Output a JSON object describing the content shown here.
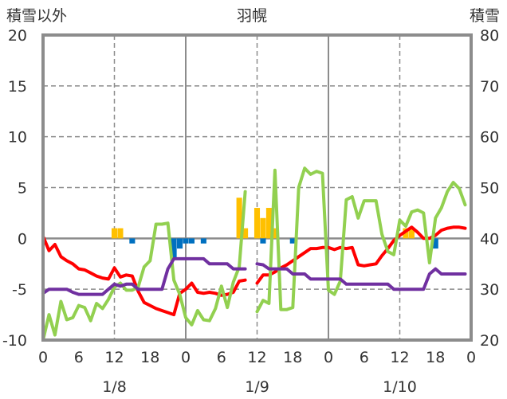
{
  "chart_data": {
    "type": "line",
    "title": "羽幌",
    "left_axis_label": "積雪以外",
    "right_axis_label": "積雪",
    "left_ylim": [
      -10,
      20
    ],
    "left_ticks": [
      20,
      15,
      10,
      5,
      0,
      -5,
      -10
    ],
    "right_ylim": [
      20,
      80
    ],
    "right_ticks": [
      80,
      70,
      60,
      50,
      40,
      30,
      20
    ],
    "xlim": [
      0,
      72
    ],
    "x_tick_values": [
      0,
      6,
      12,
      18,
      24,
      30,
      36,
      42,
      48,
      54,
      60,
      66,
      72
    ],
    "x_tick_labels": [
      "0",
      "6",
      "12",
      "18",
      "0",
      "6",
      "12",
      "18",
      "0",
      "6",
      "12",
      "18",
      "0"
    ],
    "date_labels": [
      {
        "x": 12,
        "label": "1/8"
      },
      {
        "x": 36,
        "label": "1/9"
      },
      {
        "x": 60,
        "label": "1/10"
      }
    ],
    "day_lines": [
      24,
      48
    ],
    "dashed_lines": [
      12,
      36,
      60
    ],
    "grid": true,
    "series": [
      {
        "color": "#ff0000",
        "axis": "left",
        "values": [
          [
            0,
            0.2
          ],
          [
            1,
            -1.2
          ],
          [
            2,
            -0.6
          ],
          [
            3,
            -1.8
          ],
          [
            4,
            -2.2
          ],
          [
            5,
            -2.5
          ],
          [
            6,
            -3
          ],
          [
            7,
            -3.1
          ],
          [
            8,
            -3.4
          ],
          [
            9,
            -3.7
          ],
          [
            10,
            -3.9
          ],
          [
            11,
            -4
          ],
          [
            12,
            -2.9
          ],
          [
            13,
            -3.8
          ],
          [
            14,
            -3.6
          ],
          [
            15,
            -3.7
          ],
          [
            16,
            -5.2
          ],
          [
            17,
            -6.3
          ],
          [
            18,
            -6.6
          ],
          [
            19,
            -6.9
          ],
          [
            20,
            -7.1
          ],
          [
            21,
            -7.3
          ],
          [
            22,
            -7.5
          ],
          [
            23,
            -5.4
          ],
          [
            24,
            -5
          ],
          [
            25,
            -4.4
          ],
          [
            26,
            -5.3
          ],
          [
            27,
            -5.4
          ],
          [
            28,
            -5.3
          ],
          [
            29,
            -5.4
          ],
          [
            30,
            -5.6
          ],
          [
            31,
            -5.5
          ],
          [
            32,
            -5.3
          ],
          [
            33,
            -4.2
          ],
          [
            34,
            -4.1
          ],
          null,
          [
            36,
            -4.4
          ],
          [
            37,
            -3.6
          ],
          [
            38,
            -3.6
          ],
          [
            39,
            -3.3
          ],
          [
            40,
            -2.9
          ],
          [
            41,
            -2.6
          ],
          [
            42,
            -2.2
          ],
          [
            43,
            -1.8
          ],
          [
            44,
            -1.4
          ],
          [
            45,
            -1
          ],
          [
            46,
            -1
          ],
          [
            47,
            -0.9
          ],
          [
            48,
            -0.9
          ],
          [
            49,
            -1.1
          ],
          [
            50,
            -0.9
          ],
          [
            51,
            -1
          ],
          [
            52,
            -0.9
          ],
          [
            53,
            -2.6
          ],
          [
            54,
            -2.7
          ],
          [
            55,
            -2.6
          ],
          [
            56,
            -2.5
          ],
          [
            57,
            -1.7
          ],
          [
            58,
            -1
          ],
          [
            59,
            -0.2
          ],
          [
            60,
            0.3
          ],
          [
            61,
            0.7
          ],
          [
            62,
            1.1
          ],
          [
            63,
            0.6
          ],
          [
            64,
            0
          ],
          [
            65,
            0
          ],
          [
            66,
            0.3
          ],
          [
            67,
            0.8
          ],
          [
            68,
            1
          ],
          [
            69,
            1.1
          ],
          [
            70,
            1.1
          ],
          [
            71,
            1
          ]
        ]
      },
      {
        "color": "#92d050",
        "axis": "left",
        "values": [
          [
            0,
            -10
          ],
          [
            1,
            -7.5
          ],
          [
            2,
            -9.5
          ],
          [
            3,
            -6.2
          ],
          [
            4,
            -8
          ],
          [
            5,
            -7.8
          ],
          [
            6,
            -6.6
          ],
          [
            7,
            -6.8
          ],
          [
            8,
            -8.1
          ],
          [
            9,
            -6.4
          ],
          [
            10,
            -6.9
          ],
          [
            11,
            -6
          ],
          [
            12,
            -4.8
          ],
          [
            13,
            -4.4
          ],
          [
            14,
            -5.1
          ],
          [
            15,
            -5.1
          ],
          [
            16,
            -4.8
          ],
          [
            17,
            -2.8
          ],
          [
            18,
            -2.2
          ],
          [
            19,
            1.4
          ],
          [
            20,
            1.4
          ],
          [
            21,
            1.5
          ],
          [
            22,
            -4.1
          ],
          [
            23,
            -5.5
          ],
          [
            24,
            -7.8
          ],
          [
            25,
            -8.5
          ],
          [
            26,
            -7.1
          ],
          [
            27,
            -8
          ],
          [
            28,
            -8.1
          ],
          [
            29,
            -6.9
          ],
          [
            30,
            -4.7
          ],
          [
            31,
            -6.8
          ],
          [
            32,
            -4.3
          ],
          [
            33,
            -2.8
          ],
          [
            34,
            4.6
          ],
          null,
          [
            36,
            -7.2
          ],
          [
            37,
            -6.1
          ],
          [
            38,
            -6.4
          ],
          [
            39,
            6.7
          ],
          [
            40,
            -7
          ],
          [
            41,
            -7
          ],
          [
            42,
            -6.8
          ],
          [
            43,
            5
          ],
          [
            44,
            6.9
          ],
          [
            45,
            6.3
          ],
          [
            46,
            6.6
          ],
          [
            47,
            6.4
          ],
          [
            48,
            -5.1
          ],
          [
            49,
            -5.5
          ],
          [
            50,
            -4.2
          ],
          [
            51,
            3.8
          ],
          [
            52,
            4.1
          ],
          [
            53,
            2
          ],
          [
            54,
            3.7
          ],
          [
            55,
            3.7
          ],
          [
            56,
            3.7
          ],
          [
            57,
            0.4
          ],
          [
            58,
            -1.3
          ],
          [
            59,
            -1.6
          ],
          [
            60,
            1.8
          ],
          [
            61,
            1.2
          ],
          [
            62,
            2.6
          ],
          [
            63,
            2.8
          ],
          [
            64,
            2.5
          ],
          [
            65,
            -2.4
          ],
          [
            66,
            2
          ],
          [
            67,
            3
          ],
          [
            68,
            4.6
          ],
          [
            69,
            5.5
          ],
          [
            70,
            4.9
          ],
          [
            71,
            3.3
          ]
        ]
      },
      {
        "color": "#7030a0",
        "axis": "left",
        "values": [
          [
            0,
            -5.4
          ],
          [
            1,
            -5
          ],
          [
            2,
            -5
          ],
          [
            3,
            -5
          ],
          [
            4,
            -5
          ],
          [
            5,
            -5.3
          ],
          [
            6,
            -5.5
          ],
          [
            7,
            -5.5
          ],
          [
            8,
            -5.5
          ],
          [
            9,
            -5.5
          ],
          [
            10,
            -5.5
          ],
          [
            11,
            -5
          ],
          [
            12,
            -4.5
          ],
          [
            13,
            -4.7
          ],
          [
            14,
            -4.5
          ],
          [
            15,
            -4.5
          ],
          [
            16,
            -5
          ],
          [
            17,
            -5
          ],
          [
            18,
            -5
          ],
          [
            19,
            -5
          ],
          [
            20,
            -5
          ],
          [
            21,
            -3
          ],
          [
            22,
            -2
          ],
          [
            23,
            -2
          ],
          [
            24,
            -2
          ],
          [
            25,
            -2
          ],
          [
            26,
            -2
          ],
          [
            27,
            -2
          ],
          [
            28,
            -2.5
          ],
          [
            29,
            -2.5
          ],
          [
            30,
            -2.5
          ],
          [
            31,
            -2.5
          ],
          [
            32,
            -3
          ],
          [
            33,
            -3
          ],
          [
            34,
            -3
          ],
          null,
          [
            36,
            -2.5
          ],
          [
            37,
            -2.6
          ],
          [
            38,
            -3
          ],
          [
            39,
            -3
          ],
          [
            40,
            -3
          ],
          [
            41,
            -3
          ],
          [
            42,
            -3.5
          ],
          [
            43,
            -3.5
          ],
          [
            44,
            -3.5
          ],
          [
            45,
            -4
          ],
          [
            46,
            -4
          ],
          [
            47,
            -4
          ],
          [
            48,
            -4
          ],
          [
            49,
            -4
          ],
          [
            50,
            -4
          ],
          [
            51,
            -4.5
          ],
          [
            52,
            -4.5
          ],
          [
            53,
            -4.5
          ],
          [
            54,
            -4.5
          ],
          [
            55,
            -4.5
          ],
          [
            56,
            -4.5
          ],
          [
            57,
            -4.5
          ],
          [
            58,
            -4.5
          ],
          [
            59,
            -5
          ],
          [
            60,
            -5
          ],
          [
            61,
            -5
          ],
          [
            62,
            -5
          ],
          [
            63,
            -5
          ],
          [
            64,
            -5
          ],
          [
            65,
            -3.5
          ],
          [
            66,
            -3
          ],
          [
            67,
            -3.5
          ],
          [
            68,
            -3.5
          ],
          [
            69,
            -3.5
          ],
          [
            70,
            -3.5
          ],
          [
            71,
            -3.5
          ]
        ]
      }
    ],
    "bars": [
      {
        "color": "#ffc000",
        "axis": "left",
        "values": [
          [
            12,
            1
          ],
          [
            13,
            1
          ],
          [
            33,
            4
          ],
          [
            34,
            1
          ],
          [
            36,
            3
          ],
          [
            37,
            2
          ],
          [
            38,
            3
          ],
          [
            39,
            1
          ],
          [
            61,
            1
          ],
          [
            62,
            1
          ]
        ]
      },
      {
        "color": "#0070c0",
        "axis": "left",
        "values": [
          [
            15,
            -0.5
          ],
          [
            22,
            -2
          ],
          [
            23,
            -1
          ],
          [
            24,
            -0.5
          ],
          [
            25,
            -0.5
          ],
          [
            27,
            -0.5
          ],
          [
            37,
            -0.5
          ],
          [
            42,
            -0.5
          ],
          [
            66,
            -1
          ]
        ]
      }
    ]
  }
}
